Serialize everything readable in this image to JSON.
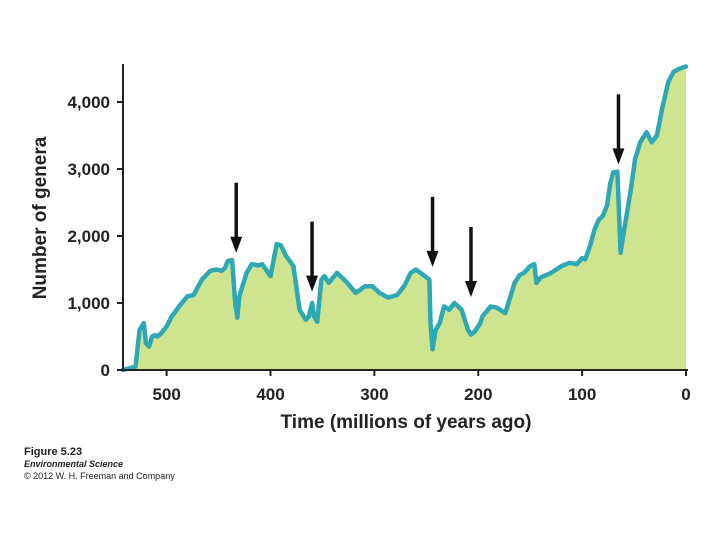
{
  "chart_data": {
    "type": "area",
    "title": "",
    "xlabel": "Time (millions of years ago)",
    "ylabel": "Number of genera",
    "xlim": [
      542,
      0
    ],
    "ylim": [
      0,
      4600
    ],
    "x_ticks": [
      500,
      400,
      300,
      200,
      100,
      0
    ],
    "x_tick_labels": [
      "500",
      "400",
      "300",
      "200",
      "100",
      "0"
    ],
    "y_ticks": [
      0,
      1000,
      2000,
      3000,
      4000
    ],
    "y_tick_labels": [
      "0",
      "1,000",
      "2,000",
      "3,000",
      "4,000"
    ],
    "grid": false,
    "legend": "none",
    "colors": {
      "fill": "#cfe48f",
      "line": "#2fa8b5",
      "arrow": "#111111",
      "axis": "#222222"
    },
    "x": [
      542,
      530,
      526,
      522,
      520,
      517,
      514,
      511,
      509,
      505,
      500,
      495,
      488,
      480,
      474,
      466,
      458,
      452,
      447,
      444,
      441,
      437,
      434,
      432,
      430,
      428,
      423,
      418,
      412,
      408,
      400,
      394,
      390,
      385,
      378,
      372,
      366,
      363,
      360,
      358,
      355,
      351,
      348,
      344,
      336,
      326,
      318,
      309,
      302,
      295,
      287,
      278,
      271,
      265,
      260,
      253,
      247,
      246,
      244,
      241,
      237,
      233,
      228,
      223,
      216,
      210,
      207,
      203,
      198,
      196,
      188,
      182,
      174,
      168,
      165,
      160,
      156,
      150,
      146,
      144,
      140,
      130,
      120,
      112,
      105,
      100,
      97,
      92,
      88,
      84,
      80,
      76,
      73,
      70,
      66,
      63,
      60,
      53,
      49,
      44,
      38,
      33,
      28,
      23,
      17,
      12,
      6,
      0
    ],
    "values": [
      0,
      50,
      600,
      700,
      400,
      350,
      500,
      520,
      500,
      550,
      650,
      800,
      950,
      1100,
      1120,
      1350,
      1480,
      1500,
      1480,
      1520,
      1630,
      1640,
      1000,
      780,
      1100,
      1200,
      1450,
      1580,
      1560,
      1580,
      1400,
      1880,
      1860,
      1700,
      1550,
      900,
      750,
      800,
      1000,
      800,
      720,
      1350,
      1400,
      1300,
      1450,
      1300,
      1150,
      1250,
      1250,
      1150,
      1080,
      1120,
      1260,
      1450,
      1500,
      1420,
      1350,
      700,
      310,
      600,
      700,
      950,
      900,
      1000,
      900,
      600,
      530,
      580,
      700,
      800,
      950,
      930,
      850,
      1150,
      1300,
      1420,
      1450,
      1550,
      1580,
      1300,
      1380,
      1450,
      1550,
      1600,
      1580,
      1670,
      1650,
      1870,
      2100,
      2240,
      2300,
      2460,
      2780,
      2950,
      2960,
      1750,
      2050,
      2700,
      3150,
      3400,
      3550,
      3400,
      3500,
      3900,
      4300,
      4450,
      4500,
      4530
    ],
    "annotations": [
      {
        "type": "arrow",
        "x": 433,
        "y": 1660
      },
      {
        "type": "arrow",
        "x": 360,
        "y": 1080
      },
      {
        "type": "arrow",
        "x": 244,
        "y": 1450
      },
      {
        "type": "arrow",
        "x": 207,
        "y": 1000
      },
      {
        "type": "arrow",
        "x": 65,
        "y": 2980
      }
    ]
  },
  "caption": {
    "figure": "Figure 5.23",
    "book": "Environmental Science",
    "copyright": "© 2012 W. H. Freeman and Company"
  }
}
